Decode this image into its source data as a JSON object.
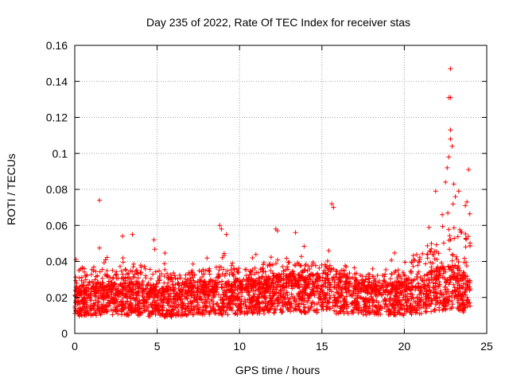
{
  "chart_data": {
    "type": "scatter",
    "title": "Day 235 of 2022, Rate Of TEC Index for receiver stas",
    "xlabel": "GPS time / hours",
    "ylabel": "ROTI / TECUs",
    "xlim": [
      0,
      25
    ],
    "ylim": [
      0,
      0.16
    ],
    "xticks": [
      0,
      5,
      10,
      15,
      20,
      25
    ],
    "xtick_labels": [
      "0",
      "5",
      "10",
      "15",
      "20",
      "25"
    ],
    "yticks": [
      0,
      0.02,
      0.04,
      0.06,
      0.08,
      0.1,
      0.12,
      0.14,
      0.16
    ],
    "ytick_labels": [
      "0",
      "0.02",
      "0.04",
      "0.06",
      "0.08",
      "0.1",
      "0.12",
      "0.14",
      "0.16"
    ],
    "grid": true,
    "marker": "+",
    "color": "#ff0000",
    "data_extent_hours": [
      0,
      24
    ],
    "envelope": {
      "x": [
        0,
        1,
        2,
        3,
        4,
        5,
        6,
        7,
        8,
        9,
        10,
        11,
        12,
        13,
        14,
        15,
        16,
        17,
        18,
        19,
        20,
        21,
        22,
        23,
        24
      ],
      "low": [
        0.006,
        0.004,
        0.005,
        0.006,
        0.005,
        0.004,
        0.005,
        0.006,
        0.005,
        0.005,
        0.006,
        0.006,
        0.006,
        0.006,
        0.006,
        0.006,
        0.006,
        0.006,
        0.005,
        0.005,
        0.005,
        0.006,
        0.006,
        0.005,
        0.006
      ],
      "typ": [
        0.02,
        0.022,
        0.022,
        0.022,
        0.022,
        0.02,
        0.02,
        0.022,
        0.023,
        0.022,
        0.023,
        0.024,
        0.025,
        0.026,
        0.025,
        0.026,
        0.024,
        0.024,
        0.022,
        0.022,
        0.022,
        0.024,
        0.028,
        0.03,
        0.024
      ],
      "high": [
        0.045,
        0.05,
        0.045,
        0.045,
        0.05,
        0.05,
        0.04,
        0.042,
        0.045,
        0.048,
        0.045,
        0.045,
        0.055,
        0.05,
        0.05,
        0.048,
        0.045,
        0.04,
        0.04,
        0.045,
        0.045,
        0.06,
        0.07,
        0.08,
        0.075
      ]
    },
    "outliers": [
      {
        "x": 1.5,
        "y": 0.074
      },
      {
        "x": 2.9,
        "y": 0.054
      },
      {
        "x": 3.5,
        "y": 0.055
      },
      {
        "x": 4.8,
        "y": 0.052
      },
      {
        "x": 8.8,
        "y": 0.06
      },
      {
        "x": 8.9,
        "y": 0.058
      },
      {
        "x": 9.2,
        "y": 0.055
      },
      {
        "x": 12.3,
        "y": 0.057
      },
      {
        "x": 12.2,
        "y": 0.058
      },
      {
        "x": 13.4,
        "y": 0.056
      },
      {
        "x": 15.6,
        "y": 0.072
      },
      {
        "x": 15.7,
        "y": 0.07
      },
      {
        "x": 21.9,
        "y": 0.079
      },
      {
        "x": 22.5,
        "y": 0.084
      },
      {
        "x": 22.6,
        "y": 0.092
      },
      {
        "x": 22.7,
        "y": 0.098
      },
      {
        "x": 22.8,
        "y": 0.108
      },
      {
        "x": 22.8,
        "y": 0.113
      },
      {
        "x": 22.7,
        "y": 0.131
      },
      {
        "x": 22.8,
        "y": 0.131
      },
      {
        "x": 22.8,
        "y": 0.147
      },
      {
        "x": 22.9,
        "y": 0.104
      },
      {
        "x": 23.0,
        "y": 0.083
      },
      {
        "x": 23.3,
        "y": 0.079
      },
      {
        "x": 23.9,
        "y": 0.091
      },
      {
        "x": 23.8,
        "y": 0.073
      },
      {
        "x": 23.7,
        "y": 0.071
      },
      {
        "x": 23.1,
        "y": 0.076
      },
      {
        "x": 22.3,
        "y": 0.066
      }
    ]
  }
}
